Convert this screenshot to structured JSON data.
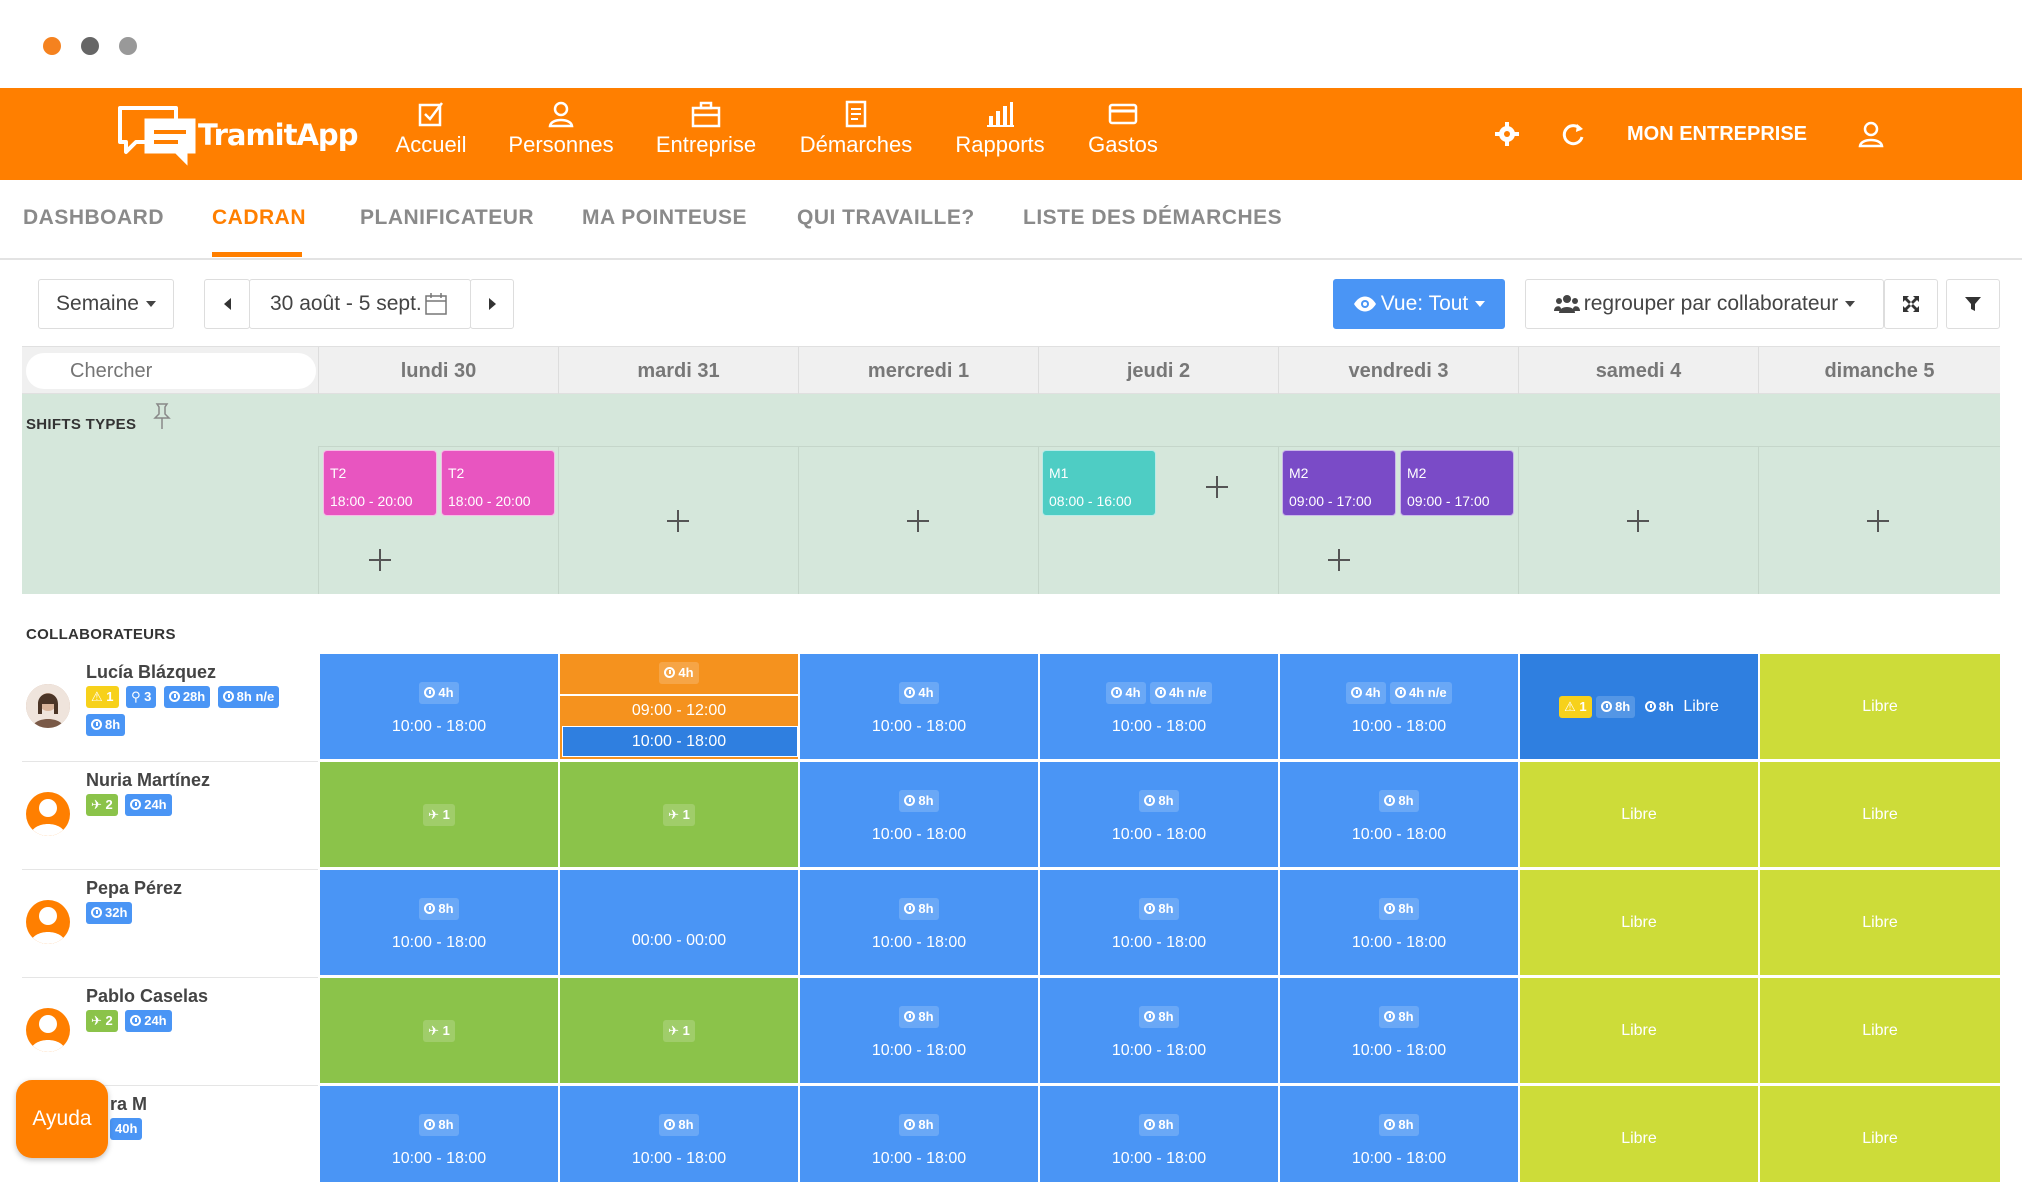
{
  "brand": {
    "name": "TramitApp",
    "accent": "#ff7f00"
  },
  "nav": {
    "items": [
      {
        "label": "Accueil",
        "icon": "checkbox-icon"
      },
      {
        "label": "Personnes",
        "icon": "person-icon"
      },
      {
        "label": "Entreprise",
        "icon": "briefcase-icon"
      },
      {
        "label": "Démarches",
        "icon": "document-icon"
      },
      {
        "label": "Rapports",
        "icon": "bar-chart-icon"
      },
      {
        "label": "Gastos",
        "icon": "credit-card-icon"
      }
    ],
    "company": "MON ENTREPRISE"
  },
  "tabs": [
    "DASHBOARD",
    "CADRAN",
    "PLANIFICATEUR",
    "MA POINTEUSE",
    "QUI TRAVAILLE?",
    "LISTE DES DÉMARCHES"
  ],
  "toolbar": {
    "period": "Semaine",
    "range": "30 août - 5 sept.",
    "view": "Vue: Tout",
    "group": "regrouper par collaborateur"
  },
  "search": {
    "placeholder": "Chercher"
  },
  "days": [
    "lundi 30",
    "mardi 31",
    "mercredi 1",
    "jeudi 2",
    "vendredi 3",
    "samedi 4",
    "dimanche 5"
  ],
  "sections": {
    "shifts": "SHIFTS TYPES",
    "people": "COLLABORATEURS"
  },
  "shift_types": [
    {
      "code": "T2",
      "time": "18:00 - 20:00",
      "color": "#e855c0"
    },
    {
      "code": "T2",
      "time": "18:00 - 20:00",
      "color": "#e855c0"
    },
    {
      "code": "M1",
      "time": "08:00 - 16:00",
      "color": "#4ecdc4"
    },
    {
      "code": "M2",
      "time": "09:00 - 17:00",
      "color": "#7a4bc7"
    },
    {
      "code": "M2",
      "time": "09:00 - 17:00",
      "color": "#7a4bc7"
    }
  ],
  "people": [
    {
      "name": "Lucía Blázquez",
      "badges": [
        "1",
        "3",
        "28h",
        "8h n/e",
        "8h"
      ]
    },
    {
      "name": "Nuria Martínez",
      "badges": [
        "2",
        "24h"
      ]
    },
    {
      "name": "Pepa Pérez",
      "badges": [
        "32h"
      ]
    },
    {
      "name": "Pablo Caselas",
      "badges": [
        "2",
        "24h"
      ]
    },
    {
      "name": "ra M",
      "badges": [
        "40h"
      ]
    }
  ],
  "cells": {
    "h4": "4h",
    "h8": "8h",
    "ne": "4h n/e",
    "v1": "1",
    "std": "10:00 - 18:00",
    "morning": "09:00 - 12:00",
    "zero": "00:00 - 00:00",
    "libre": "Libre",
    "warn": "1"
  },
  "help": "Ayuda",
  "colors": {
    "blue": "#4a95f5",
    "darkblue": "#2f7fe0",
    "green": "#8bc34a",
    "lime": "#cddc39",
    "orange": "#f5921e"
  }
}
